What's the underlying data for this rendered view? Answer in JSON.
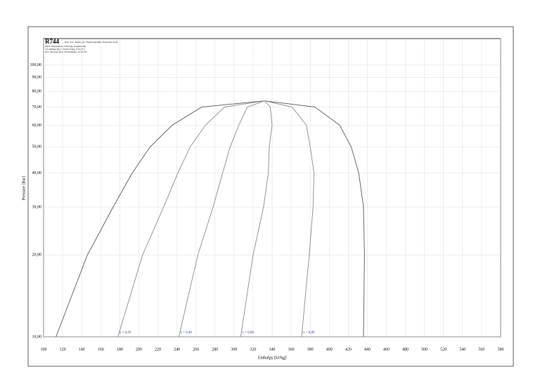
{
  "chart_data": {
    "type": "line",
    "title": "R744",
    "subtitle": [
      "Ref: W.C. Reynolds: Thermodynamic Properties in SI",
      "DTU, Department of Energy Engineering",
      "s in [kJ/(kg K)], v in [m^3/kg], T in [°C]",
      "M.J. Skovrup & H.J.H Knudsen. 21-02-07"
    ],
    "x_label": "Enthalpy [kJ/kg]",
    "y_label": "Pressure [Bar]",
    "log_y": true,
    "grid": true,
    "xlim": [
      100,
      580
    ],
    "xticks": [
      100,
      120,
      140,
      160,
      180,
      200,
      220,
      240,
      260,
      280,
      300,
      320,
      340,
      360,
      380,
      400,
      420,
      440,
      460,
      480,
      500,
      520,
      540,
      560,
      580
    ],
    "ylim": [
      10,
      125
    ],
    "yticks": [
      {
        "value": 10,
        "label": "10,00"
      },
      {
        "value": 20,
        "label": "20,00"
      },
      {
        "value": 30,
        "label": "30,00"
      },
      {
        "value": 40,
        "label": "40,00"
      },
      {
        "value": 50,
        "label": "50,00"
      },
      {
        "value": 60,
        "label": "60,00"
      },
      {
        "value": 70,
        "label": "70,00"
      },
      {
        "value": 80,
        "label": "80,00"
      },
      {
        "value": 90,
        "label": "90,00"
      },
      {
        "value": 100,
        "label": "100,00"
      }
    ],
    "series": [
      {
        "color": "#555555",
        "x": [
          113,
          146,
          173,
          193,
          212,
          235,
          266,
          332,
          385,
          411,
          423,
          431,
          436,
          437,
          436
        ],
        "values": [
          10,
          20,
          30,
          40,
          50,
          60,
          70,
          73.8,
          70,
          60,
          50,
          40,
          30,
          20,
          10
        ]
      },
      {
        "name": "x = 0,20",
        "color": "#888888",
        "x": [
          178,
          204,
          226,
          241,
          254,
          270,
          290,
          332
        ],
        "values": [
          10,
          20,
          30,
          40,
          50,
          60,
          70,
          73.8
        ]
      },
      {
        "name": "x = 0,40",
        "color": "#888888",
        "x": [
          242,
          262,
          278,
          288,
          296,
          305,
          314,
          332
        ],
        "values": [
          10,
          20,
          30,
          40,
          50,
          60,
          70,
          73.8
        ]
      },
      {
        "name": "x = 0,60",
        "color": "#888888",
        "x": [
          307,
          320,
          331,
          336,
          337,
          340,
          338,
          332
        ],
        "values": [
          10,
          20,
          30,
          40,
          50,
          60,
          70,
          73.8
        ]
      },
      {
        "name": "x = 0,80",
        "color": "#888888",
        "x": [
          371,
          379,
          383,
          384,
          380,
          376,
          361,
          332
        ],
        "values": [
          10,
          20,
          30,
          40,
          50,
          60,
          70,
          73.8
        ]
      }
    ]
  }
}
